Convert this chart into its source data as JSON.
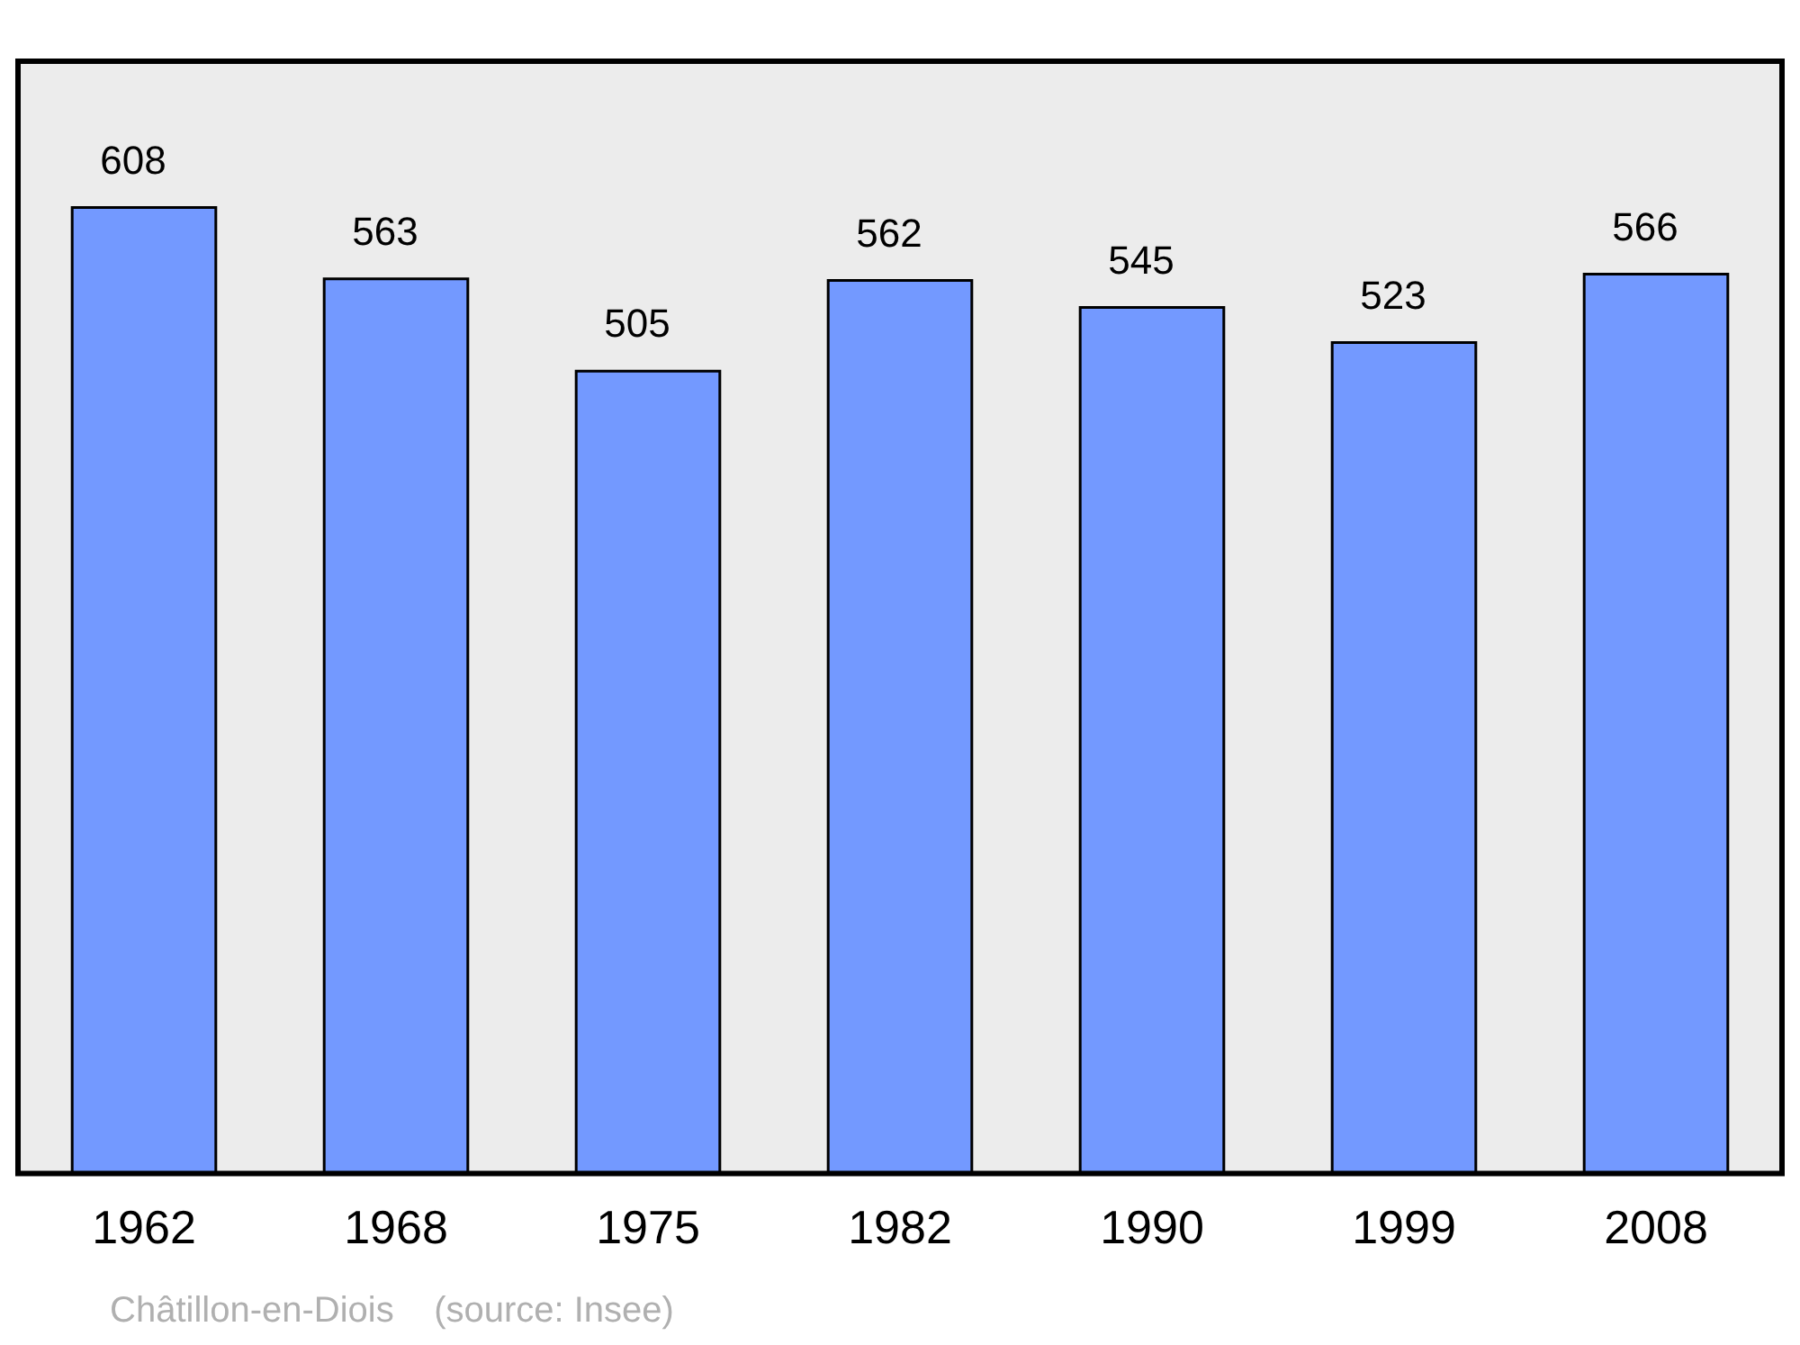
{
  "chart_data": {
    "type": "bar",
    "categories": [
      "1962",
      "1968",
      "1975",
      "1982",
      "1990",
      "1999",
      "2008"
    ],
    "values": [
      608,
      563,
      505,
      562,
      545,
      523,
      566
    ],
    "color": "#7399ff",
    "data_labels": true,
    "grid": false,
    "legend": false,
    "annotations": [
      "Châtillon-en-Diois    (source: Insee)"
    ]
  }
}
